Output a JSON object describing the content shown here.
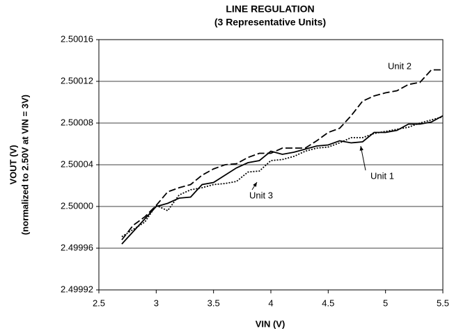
{
  "chart_data": {
    "type": "line",
    "title": "LINE REGULATION",
    "subtitle": "(3 Representative Units)",
    "x_label": "VIN (V)",
    "y_label": [
      "VOUT (V)",
      "(normalized to 2.50V at VIN = 3V)"
    ],
    "x": [
      2.7,
      2.8,
      2.9,
      3.0,
      3.1,
      3.2,
      3.3,
      3.4,
      3.5,
      3.6,
      3.7,
      3.8,
      3.9,
      4.0,
      4.1,
      4.2,
      4.3,
      4.4,
      4.5,
      4.6,
      4.7,
      4.8,
      4.9,
      5.0,
      5.1,
      5.2,
      5.3,
      5.4,
      5.5
    ],
    "series": [
      {
        "name": "Unit 1",
        "color": "#000000",
        "style": "solid",
        "values": [
          2.499964,
          2.499976,
          2.499988,
          2.5,
          2.500003,
          2.500008,
          2.500009,
          2.500021,
          2.500023,
          2.50003,
          2.500037,
          2.500042,
          2.500044,
          2.500053,
          2.50005,
          2.500052,
          2.500055,
          2.500058,
          2.500059,
          2.500063,
          2.500061,
          2.500062,
          2.500071,
          2.500071,
          2.500073,
          2.500079,
          2.500079,
          2.500081,
          2.500087
        ]
      },
      {
        "name": "Unit 2",
        "color": "#000000",
        "style": "dashed",
        "values": [
          2.499968,
          2.499982,
          2.49999,
          2.500001,
          2.500014,
          2.500018,
          2.500021,
          2.50003,
          2.500036,
          2.50004,
          2.500041,
          2.500047,
          2.500051,
          2.500051,
          2.500056,
          2.500056,
          2.500056,
          2.500063,
          2.500071,
          2.500075,
          2.500087,
          2.500101,
          2.500106,
          2.500109,
          2.500111,
          2.500117,
          2.500119,
          2.500131,
          2.500131
        ]
      },
      {
        "name": "Unit 3",
        "color": "#000000",
        "style": "dotted",
        "values": [
          2.499971,
          2.499978,
          2.499985,
          2.500001,
          2.499996,
          2.500011,
          2.500016,
          2.500018,
          2.500021,
          2.500022,
          2.500024,
          2.500033,
          2.500034,
          2.500044,
          2.500045,
          2.500048,
          2.500053,
          2.500056,
          2.500057,
          2.500061,
          2.500066,
          2.500066,
          2.50007,
          2.500072,
          2.500074,
          2.500076,
          2.50008,
          2.500083,
          2.500086
        ]
      }
    ],
    "xlim": [
      2.5,
      5.5
    ],
    "xticks": [
      2.5,
      3,
      3.5,
      4,
      4.5,
      5,
      5.5
    ],
    "ylim": [
      2.49992,
      2.50016
    ],
    "yticks": [
      2.49992,
      2.49996,
      {
        "value": 2.5,
        "label": "2.50000"
      },
      2.50004,
      2.50008,
      2.50012,
      2.50016
    ],
    "grid": true
  }
}
